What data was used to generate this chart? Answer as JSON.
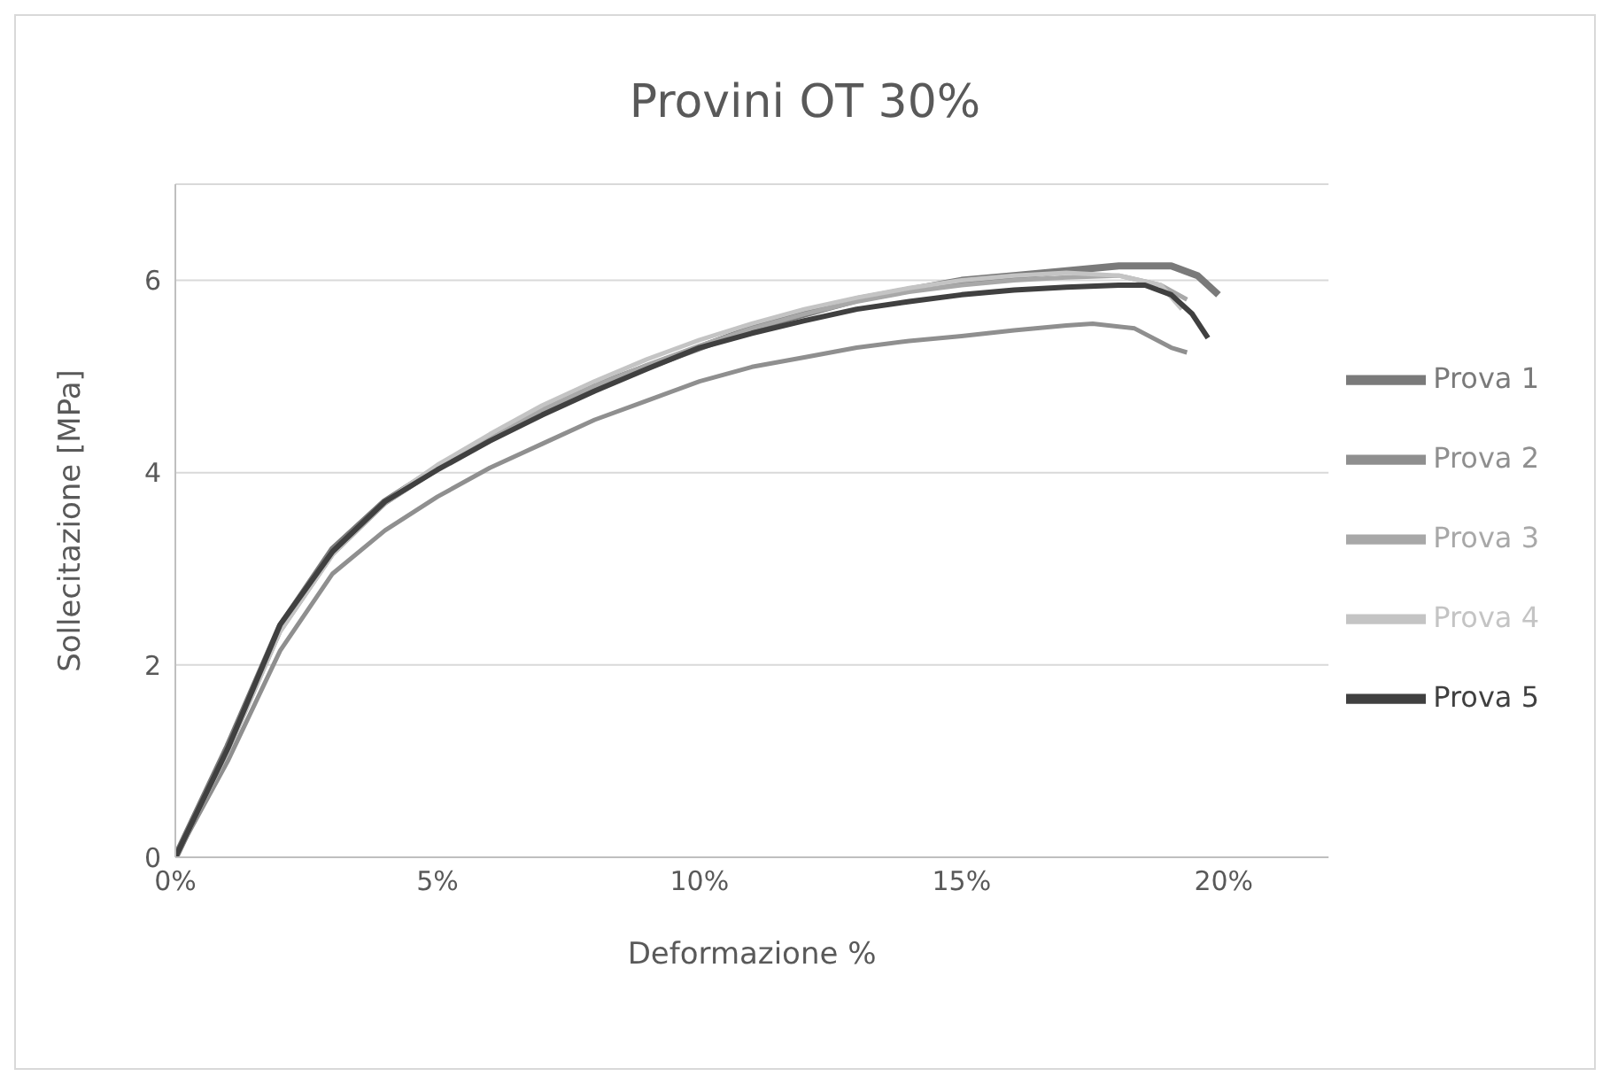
{
  "chart_data": {
    "type": "line",
    "title": "Provini OT 30%",
    "xlabel": "Deformazione %",
    "ylabel": "Sollecitazione [MPa]",
    "xlim": [
      0,
      22
    ],
    "xticks": [
      {
        "value": 0,
        "label": "0%"
      },
      {
        "value": 5,
        "label": "5%"
      },
      {
        "value": 10,
        "label": "10%"
      },
      {
        "value": 15,
        "label": "15%"
      },
      {
        "value": 20,
        "label": "20%"
      }
    ],
    "ylim": [
      0,
      7
    ],
    "yticks": [
      0,
      2,
      4,
      6
    ],
    "grid": "y",
    "legend": "right",
    "marker": "none",
    "series": [
      {
        "name": "Prova 1",
        "color": "#7a7a7a",
        "x": [
          0,
          1,
          2,
          3,
          4,
          5,
          6,
          7,
          8,
          9,
          10,
          11,
          12,
          13,
          14,
          15,
          16,
          17,
          18,
          19,
          19.5,
          19.9
        ],
        "values": [
          0,
          1.15,
          2.4,
          3.2,
          3.7,
          4.05,
          4.35,
          4.65,
          4.9,
          5.1,
          5.3,
          5.5,
          5.65,
          5.8,
          5.9,
          6.0,
          6.05,
          6.1,
          6.15,
          6.15,
          6.05,
          5.85
        ]
      },
      {
        "name": "Prova 2",
        "color": "#8f8f8f",
        "x": [
          0,
          1,
          2,
          3,
          4,
          5,
          6,
          7,
          8,
          9,
          10,
          11,
          12,
          13,
          14,
          15,
          16,
          17,
          17.5,
          18.3,
          19,
          19.3
        ],
        "values": [
          0,
          1.0,
          2.15,
          2.95,
          3.4,
          3.75,
          4.05,
          4.3,
          4.55,
          4.75,
          4.95,
          5.1,
          5.2,
          5.3,
          5.37,
          5.42,
          5.48,
          5.53,
          5.55,
          5.5,
          5.3,
          5.25
        ]
      },
      {
        "name": "Prova 3",
        "color": "#a8a8a8",
        "x": [
          0,
          1,
          2,
          3,
          4,
          5,
          6,
          7,
          8,
          9,
          10,
          11,
          12,
          13,
          14,
          15,
          16,
          17,
          18,
          18.8,
          19.3
        ],
        "values": [
          0,
          1.1,
          2.35,
          3.15,
          3.68,
          4.05,
          4.35,
          4.65,
          4.9,
          5.12,
          5.32,
          5.5,
          5.65,
          5.78,
          5.88,
          5.95,
          6.0,
          6.03,
          6.05,
          5.95,
          5.8
        ]
      },
      {
        "name": "Prova 4",
        "color": "#c4c4c4",
        "x": [
          0,
          1,
          2,
          3,
          4,
          5,
          6,
          7,
          8,
          9,
          10,
          11,
          12,
          13,
          14,
          15,
          16,
          17,
          18,
          18.8,
          19.2
        ],
        "values": [
          0,
          1.1,
          2.35,
          3.15,
          3.7,
          4.08,
          4.4,
          4.7,
          4.95,
          5.18,
          5.38,
          5.55,
          5.7,
          5.82,
          5.92,
          6.0,
          6.05,
          6.08,
          6.05,
          5.95,
          5.7
        ]
      },
      {
        "name": "Prova 5",
        "color": "#404040",
        "x": [
          0,
          1,
          2,
          3,
          4,
          5,
          6,
          7,
          8,
          9,
          10,
          11,
          12,
          13,
          14,
          15,
          16,
          17,
          18,
          18.5,
          19,
          19.4,
          19.7
        ],
        "values": [
          0,
          1.13,
          2.42,
          3.18,
          3.7,
          4.03,
          4.33,
          4.6,
          4.85,
          5.08,
          5.3,
          5.45,
          5.58,
          5.7,
          5.78,
          5.85,
          5.9,
          5.93,
          5.95,
          5.95,
          5.85,
          5.65,
          5.4
        ]
      }
    ]
  }
}
